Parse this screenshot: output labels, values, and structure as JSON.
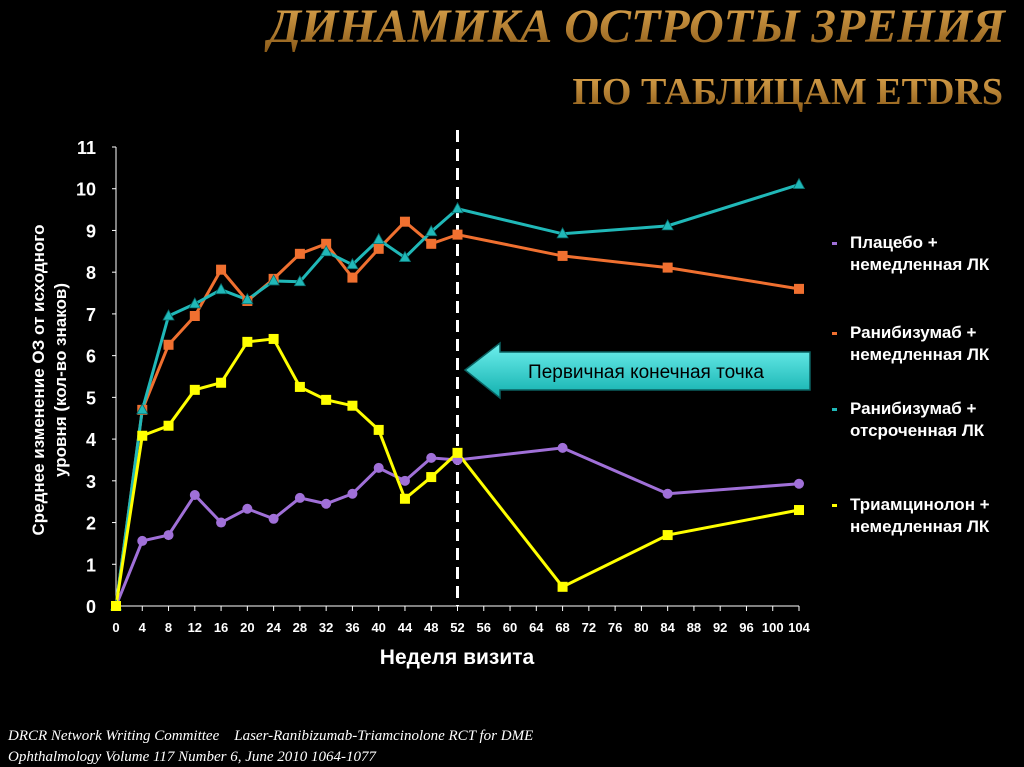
{
  "chart_data": {
    "type": "line",
    "title": "ДИНАМИКА ОСТРОТЫ ЗРЕНИЯ",
    "subtitle": "ПО ТАБЛИЦАМ ETDRS",
    "xlabel": "Неделя визита",
    "ylabel": [
      "Среднее изменение ОЗ от исходного",
      "уровня (кол-во знаков)"
    ],
    "x": [
      0,
      4,
      8,
      12,
      16,
      20,
      24,
      28,
      32,
      36,
      40,
      44,
      48,
      52,
      68,
      84,
      104
    ],
    "xlim": [
      0,
      104
    ],
    "xticks": [
      0,
      4,
      8,
      12,
      16,
      20,
      24,
      28,
      32,
      36,
      40,
      44,
      48,
      52,
      56,
      60,
      64,
      68,
      72,
      76,
      80,
      84,
      88,
      92,
      96,
      100,
      104
    ],
    "ylim": [
      0,
      11
    ],
    "yticks": [
      0,
      1,
      2,
      3,
      4,
      5,
      6,
      7,
      8,
      9,
      10,
      11
    ],
    "vline": 52,
    "annotation": "Первичная конечная точка",
    "series": [
      {
        "name": "Плацебо + немедленная ЛК",
        "color": "#a070d8",
        "marker": "circle",
        "values": [
          0,
          1.56,
          1.7,
          2.66,
          2.0,
          2.33,
          2.09,
          2.59,
          2.45,
          2.69,
          3.31,
          3.0,
          3.55,
          3.5,
          3.79,
          2.69,
          2.93
        ]
      },
      {
        "name": "Ранибизумаб + немедленная ЛК",
        "color": "#f07030",
        "marker": "square",
        "values": [
          0,
          4.7,
          6.26,
          6.95,
          8.06,
          7.31,
          7.84,
          8.44,
          8.68,
          7.87,
          8.56,
          9.21,
          8.68,
          8.9,
          8.39,
          8.11,
          7.6
        ]
      },
      {
        "name": "Ранибизумаб + отсроченная ЛК",
        "color": "#20b8b8",
        "marker": "triangle",
        "values": [
          0,
          4.7,
          6.95,
          7.24,
          7.58,
          7.34,
          7.79,
          7.77,
          8.49,
          8.18,
          8.78,
          8.35,
          8.97,
          9.52,
          8.92,
          9.11,
          10.1
        ]
      },
      {
        "name": "Триамцинолон + немедленная ЛК",
        "color": "#ffff00",
        "marker": "square",
        "values": [
          0,
          4.08,
          4.32,
          5.18,
          5.35,
          6.33,
          6.4,
          5.25,
          4.94,
          4.8,
          4.22,
          2.57,
          3.09,
          3.67,
          0.46,
          1.7,
          2.3
        ]
      }
    ],
    "notes": [
      "DRCR Network Writing Committee    Laser-Ranibizumab-Triamcinolone RCT for DME",
      "Ophthalmology Volume 117 Number 6, June 2010 1064-1077"
    ]
  }
}
